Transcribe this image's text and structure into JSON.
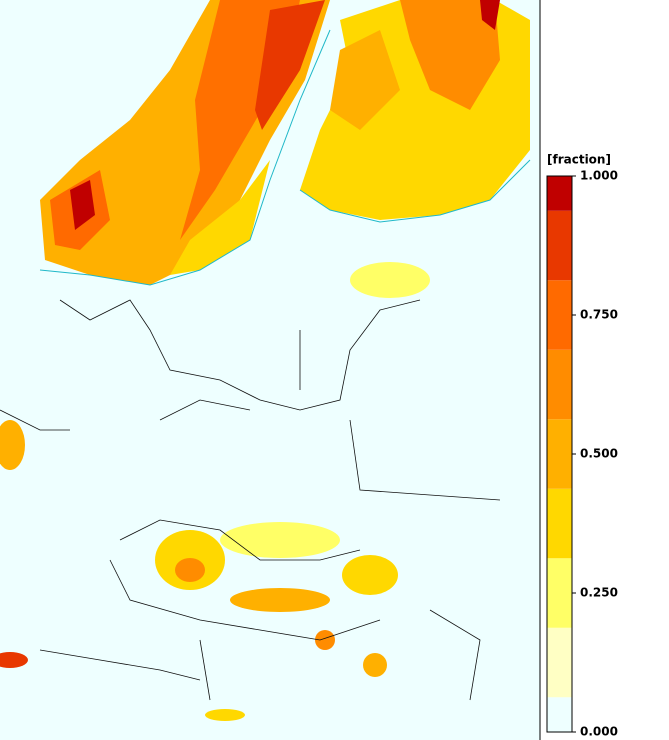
{
  "colorbar": {
    "title": "[fraction]",
    "range": [
      0,
      1
    ],
    "ticks": [
      {
        "value": 0,
        "label": "0.000"
      },
      {
        "value": 0.25,
        "label": "0.250"
      },
      {
        "value": 0.5,
        "label": "0.500"
      },
      {
        "value": 0.75,
        "label": "0.750"
      },
      {
        "value": 1,
        "label": "1.000"
      }
    ],
    "bounds": [
      0,
      0.0625,
      0.1875,
      0.3125,
      0.4375,
      0.5625,
      0.6875,
      0.8125,
      0.9375,
      1
    ],
    "colors": [
      "#eeffff",
      "#ffffc4",
      "#ffff66",
      "#ffd800",
      "#ffb000",
      "#ff8c00",
      "#ff6a00",
      "#e83800",
      "#c00000"
    ]
  }
}
